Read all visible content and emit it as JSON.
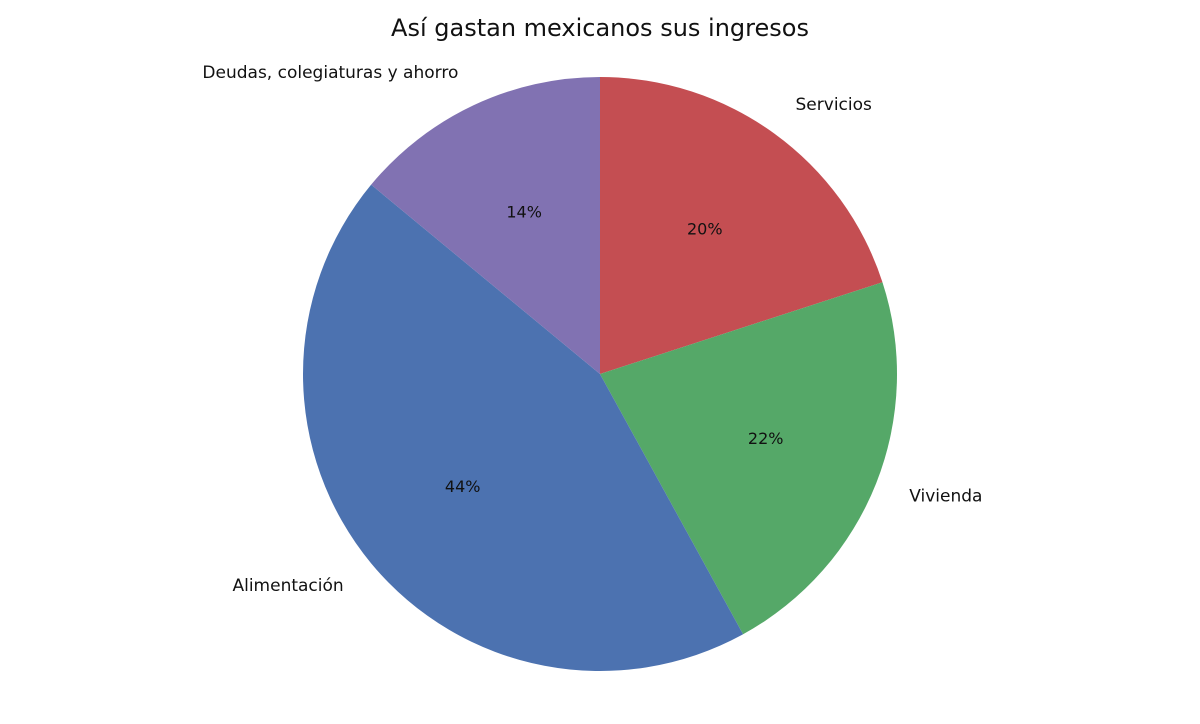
{
  "chart_data": {
    "type": "pie",
    "title": "Así gastan mexicanos sus ingresos",
    "categories": [
      "Servicios",
      "Vivienda",
      "Alimentación",
      "Deudas, colegiaturas y ahorro"
    ],
    "values": [
      20,
      22,
      44,
      14
    ],
    "value_labels": [
      "20%",
      "22%",
      "44%",
      "14%"
    ],
    "colors": [
      "#c44e52",
      "#55a868",
      "#4c72b0",
      "#8172b2"
    ]
  }
}
